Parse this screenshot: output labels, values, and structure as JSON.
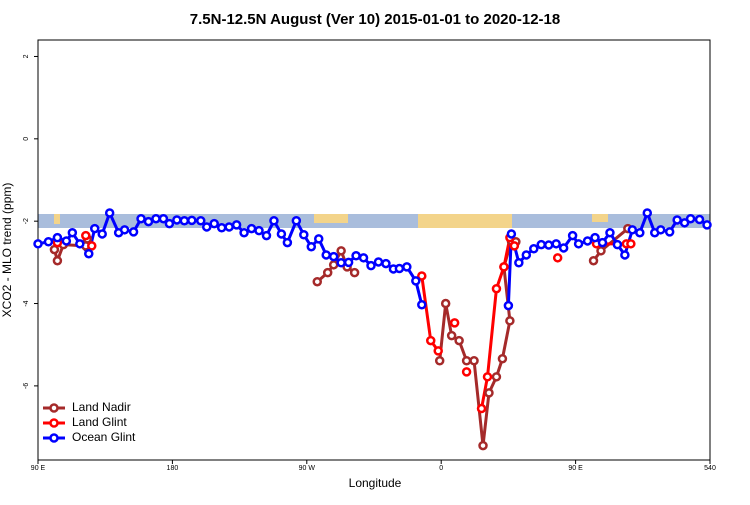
{
  "chart_data": {
    "type": "line",
    "title": "7.5N-12.5N August (Ver 10)   2015-01-01 to 2020-12-18",
    "x_label": "Longitude",
    "y_label": "XCO2 - MLO trend (ppm)",
    "xlim": [
      90,
      540
    ],
    "xticks": [
      {
        "value": 90,
        "label": "90 E"
      },
      180,
      {
        "value": 270,
        "label": "90 W"
      },
      {
        "value": 360,
        "label": "0"
      },
      {
        "value": 450,
        "label": "90 E"
      },
      540
    ],
    "ylim": [
      -7.8,
      2.4
    ],
    "yticks": [
      -6,
      -4,
      -2,
      0,
      2
    ],
    "grid": false,
    "legend": "bottom-left",
    "series": [
      {
        "name": "Land Nadir",
        "color": "#a52a2a",
        "x": [
          101,
          103,
          107,
          122,
          123,
          null,
          277,
          284,
          288,
          293,
          297,
          302,
          null,
          359,
          363,
          367,
          372,
          377,
          382,
          388,
          392,
          397,
          401,
          406,
          402,
          407,
          410,
          null,
          462,
          467,
          485
        ],
        "values": [
          -2.69,
          -2.96,
          -2.57,
          -2.6,
          -2.43,
          null,
          -3.47,
          -3.25,
          -3.06,
          -2.72,
          -3.11,
          -3.25,
          null,
          -5.39,
          -4.0,
          -4.78,
          -4.9,
          -5.39,
          -5.39,
          -7.45,
          -6.17,
          -5.78,
          -5.34,
          -4.42,
          -3.11,
          -2.48,
          -2.5,
          null,
          -2.96,
          -2.72,
          -2.18
        ]
      },
      {
        "name": "Land Glint",
        "color": "#ff0000",
        "x": [
          103,
          null,
          122,
          126,
          null,
          347,
          353,
          358,
          null,
          369,
          null,
          377,
          null,
          387,
          391,
          397,
          402,
          406,
          409,
          null,
          438,
          null,
          464,
          484,
          487
        ],
        "values": [
          -2.52,
          null,
          -2.35,
          -2.6,
          null,
          -3.33,
          -4.9,
          -5.15,
          null,
          -4.47,
          null,
          -5.66,
          null,
          -6.55,
          -5.78,
          -3.64,
          -3.11,
          -2.4,
          -2.6,
          null,
          -2.89,
          null,
          -2.55,
          -2.55,
          -2.55
        ]
      },
      {
        "name": "Ocean Glint",
        "color": "#0000ff",
        "x": [
          90,
          97,
          103,
          109,
          113,
          118,
          124,
          128,
          133,
          138,
          144,
          148,
          154,
          159,
          164,
          169,
          174,
          178,
          183,
          188,
          193,
          199,
          203,
          208,
          213,
          218,
          223,
          228,
          233,
          238,
          243,
          248,
          253,
          257,
          263,
          268,
          273,
          278,
          283,
          288,
          293,
          298,
          303,
          308,
          313,
          318,
          323,
          328,
          332,
          337,
          343,
          347,
          null,
          405,
          407,
          412,
          417,
          422,
          427,
          432,
          437,
          442,
          448,
          452,
          458,
          463,
          468,
          473,
          478,
          483,
          488,
          493,
          498,
          503,
          507,
          513,
          518,
          523,
          527,
          533,
          538
        ],
        "values": [
          -2.55,
          -2.5,
          -2.4,
          -2.48,
          -2.28,
          -2.55,
          -2.79,
          -2.18,
          -2.31,
          -1.8,
          -2.28,
          -2.21,
          -2.26,
          -1.94,
          -2.01,
          -1.94,
          -1.94,
          -2.06,
          -1.97,
          -1.99,
          -1.98,
          -1.99,
          -2.14,
          -2.06,
          -2.16,
          -2.14,
          -2.09,
          -2.28,
          -2.18,
          -2.23,
          -2.35,
          -1.99,
          -2.31,
          -2.52,
          -1.99,
          -2.33,
          -2.62,
          -2.43,
          -2.82,
          -2.86,
          -3.01,
          -3.0,
          -2.84,
          -2.89,
          -3.08,
          -2.99,
          -3.03,
          -3.16,
          -3.15,
          -3.11,
          -3.45,
          -4.03,
          null,
          -4.05,
          -2.31,
          -3.01,
          -2.82,
          -2.67,
          -2.57,
          -2.58,
          -2.55,
          -2.65,
          -2.35,
          -2.55,
          -2.48,
          -2.4,
          -2.52,
          -2.28,
          -2.57,
          -2.82,
          -2.21,
          -2.28,
          -1.8,
          -2.28,
          -2.21,
          -2.26,
          -1.97,
          -2.04,
          -1.94,
          -1.96,
          -2.09
        ]
      }
    ]
  }
}
